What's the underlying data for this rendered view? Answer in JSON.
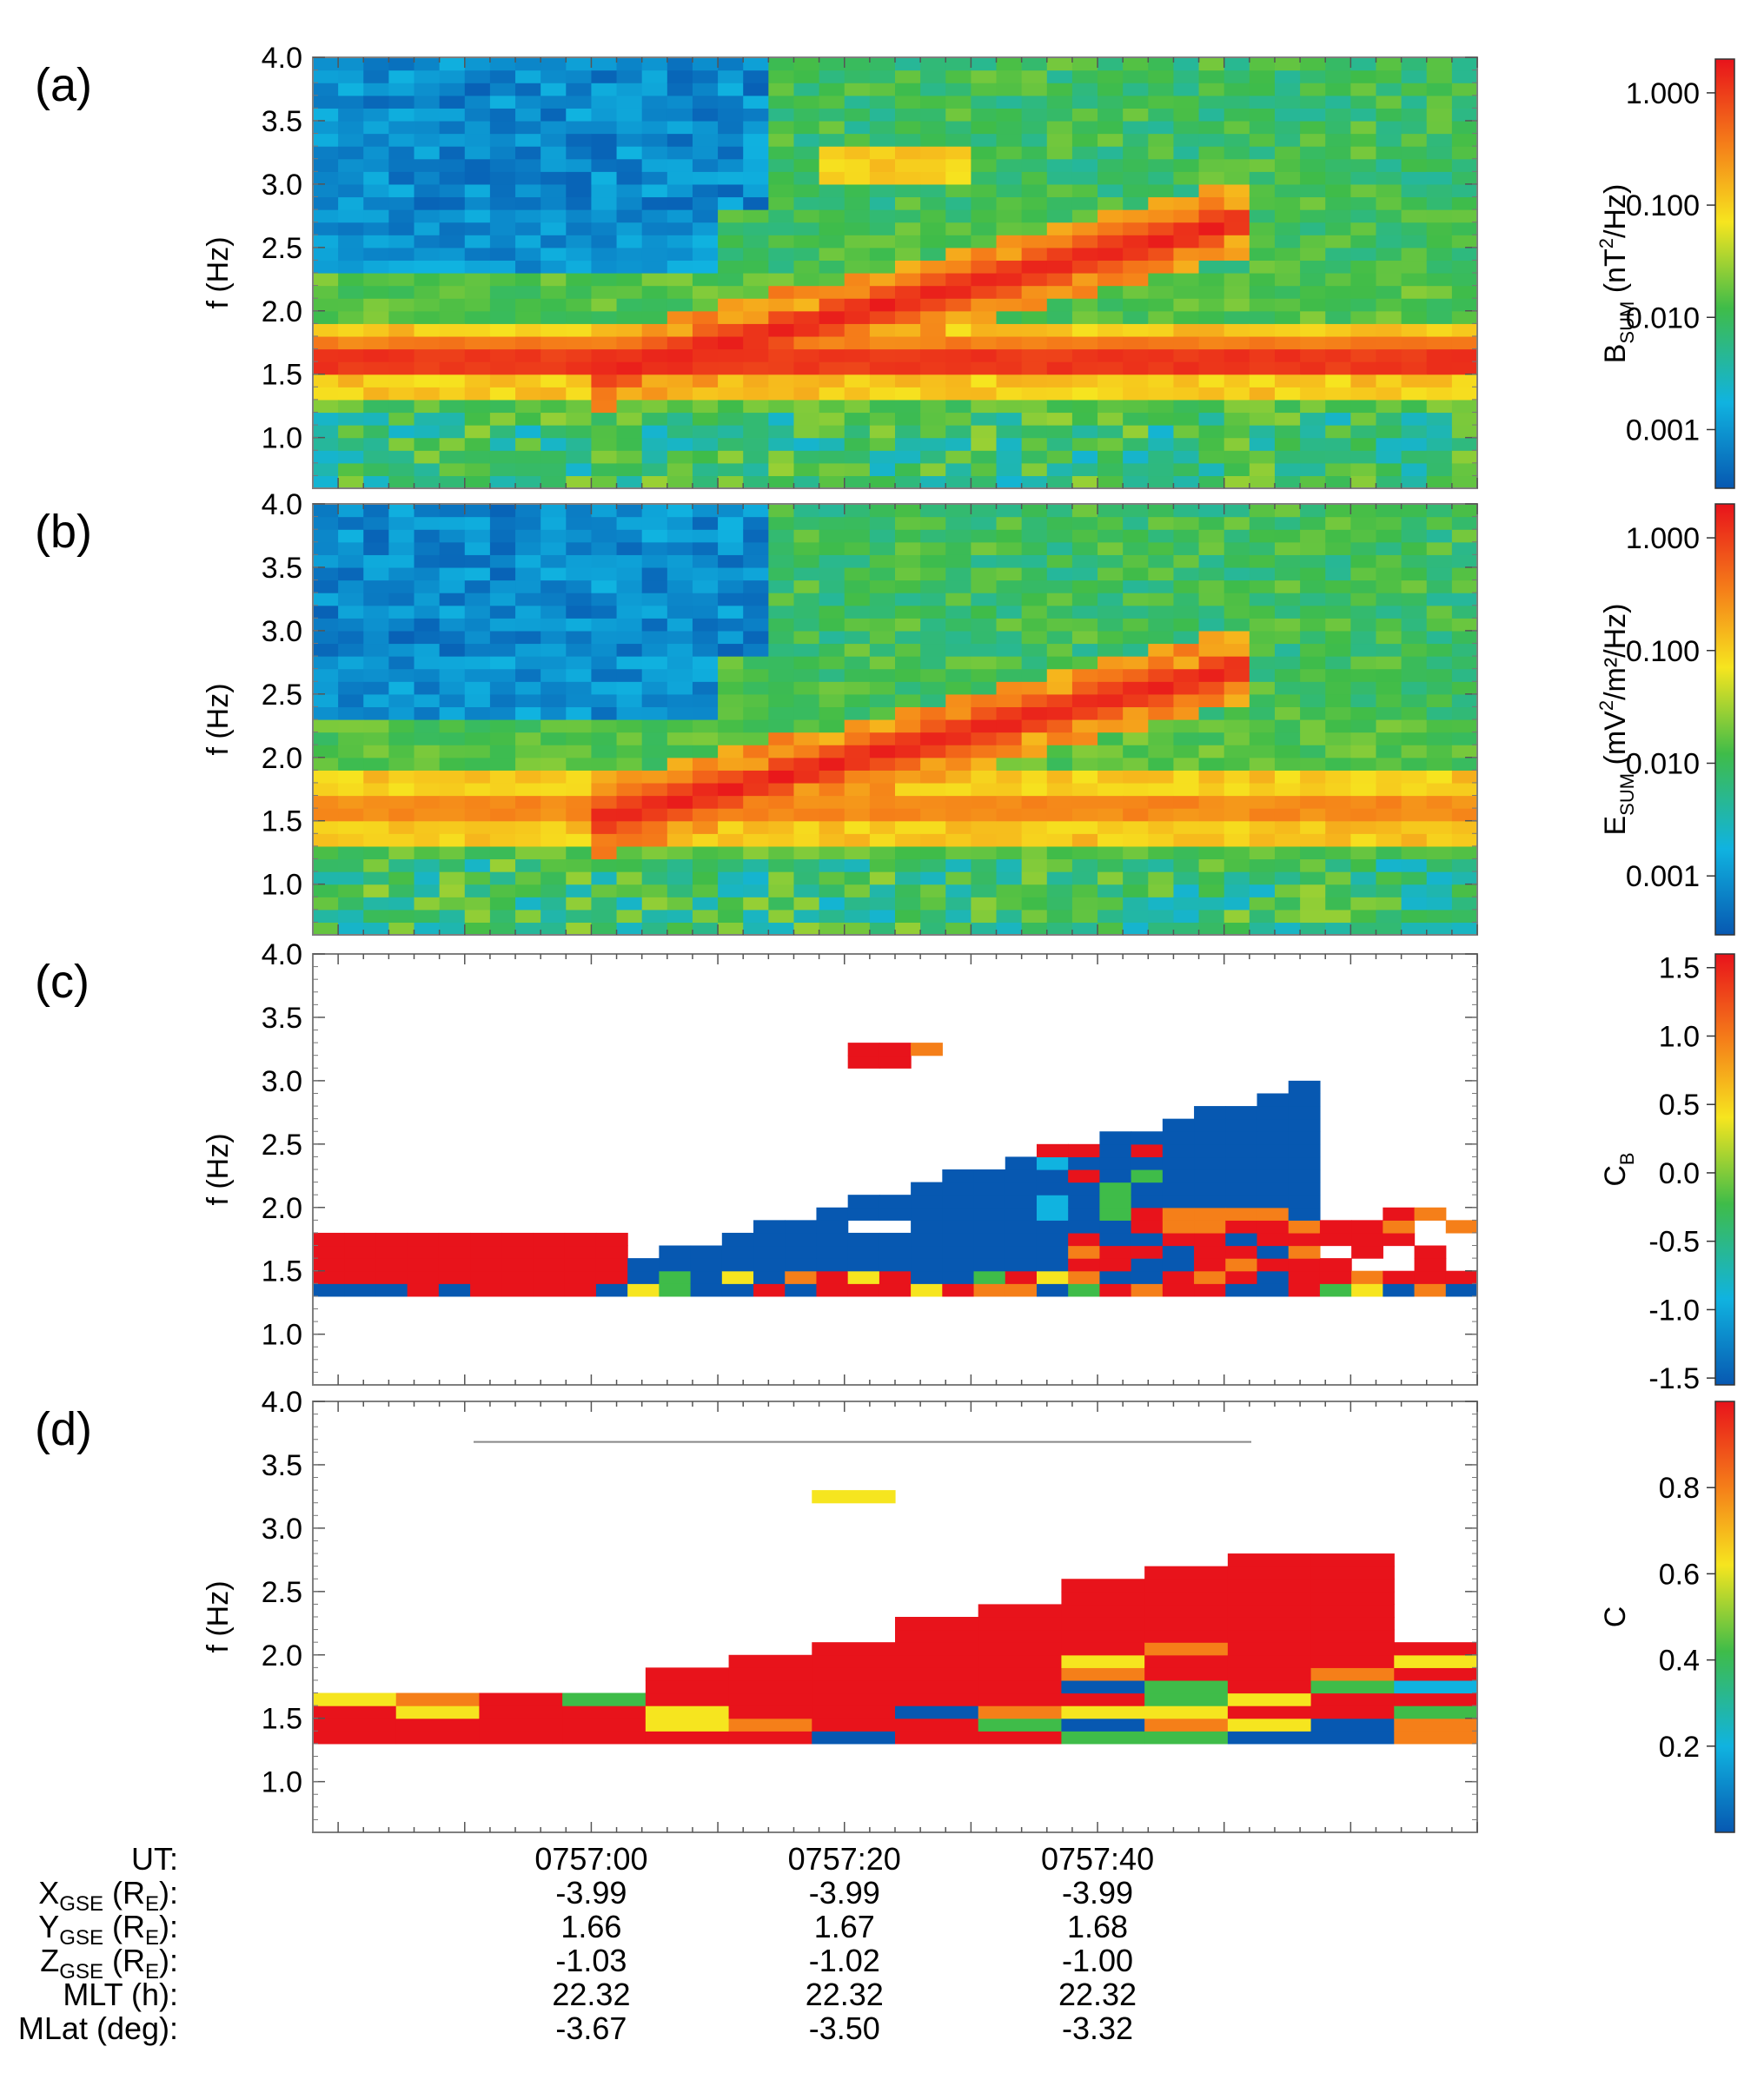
{
  "panels": [
    {
      "letter": "(a)",
      "kind": "spectrogram",
      "ylabel": "f (Hz)",
      "yticks": [
        "4.0",
        "3.5",
        "3.0",
        "2.5",
        "2.0",
        "1.5",
        "1.0"
      ]
    },
    {
      "letter": "(b)",
      "kind": "spectrogram",
      "ylabel": "f (Hz)",
      "yticks": [
        "4.0",
        "3.5",
        "3.0",
        "2.5",
        "2.0",
        "1.5",
        "1.0"
      ]
    },
    {
      "letter": "(c)",
      "kind": "sparse",
      "ylabel": "f (Hz)",
      "yticks": [
        "4.0",
        "3.5",
        "3.0",
        "2.5",
        "2.0",
        "1.5",
        "1.0"
      ]
    },
    {
      "letter": "(d)",
      "kind": "sparse",
      "ylabel": "f (Hz)",
      "yticks": [
        "4.0",
        "3.5",
        "3.0",
        "2.5",
        "2.0",
        "1.5",
        "1.0"
      ]
    }
  ],
  "colorbars": [
    {
      "label_main": "B",
      "label_sub": "SUM",
      "label_unit_a": " (nT",
      "label_sup": "2",
      "label_unit_b": "/Hz)",
      "scale": "log",
      "ticks": [
        "1.000",
        "0.100",
        "0.010",
        "0.001"
      ]
    },
    {
      "label_main": "E",
      "label_sub": "SUM",
      "label_unit_a": " (mV",
      "label_sup": "2",
      "label_unit_b": "/m²/Hz)",
      "scale": "log",
      "ticks": [
        "1.000",
        "0.100",
        "0.010",
        "0.001"
      ]
    },
    {
      "label_main": "C",
      "label_sub": "B",
      "label_unit_a": "",
      "label_sup": "",
      "label_unit_b": "",
      "scale": "linear",
      "ticks": [
        "1.5",
        "1.0",
        "0.5",
        "0.0",
        "-0.5",
        "-1.0",
        "-1.5"
      ]
    },
    {
      "label_main": "C",
      "label_sub": "",
      "label_unit_a": "",
      "label_sup": "",
      "label_unit_b": "",
      "scale": "linear",
      "ticks": [
        "0.8",
        "0.6",
        "0.4",
        "0.2"
      ]
    }
  ],
  "orbit_table": {
    "rows": [
      {
        "main": "UT:",
        "sub": "",
        "mid": "",
        "sub2": "",
        "tail": "",
        "values": [
          "0757:00",
          "0757:20",
          "0757:40"
        ]
      },
      {
        "main": "X",
        "sub": "GSE",
        "mid": " (R",
        "sub2": "E",
        "tail": "):",
        "values": [
          "-3.99",
          "-3.99",
          "-3.99"
        ]
      },
      {
        "main": "Y",
        "sub": "GSE",
        "mid": " (R",
        "sub2": "E",
        "tail": "):",
        "values": [
          "1.66",
          "1.67",
          "1.68"
        ]
      },
      {
        "main": "Z",
        "sub": "GSE",
        "mid": " (R",
        "sub2": "E",
        "tail": "):",
        "values": [
          "-1.03",
          "-1.02",
          "-1.00"
        ]
      },
      {
        "main": "MLT (h):",
        "sub": "",
        "mid": "",
        "sub2": "",
        "tail": "",
        "values": [
          "22.32",
          "22.32",
          "22.32"
        ]
      },
      {
        "main": "MLat (deg):",
        "sub": "",
        "mid": "",
        "sub2": "",
        "tail": "",
        "values": [
          "-3.67",
          "-3.50",
          "-3.32"
        ]
      }
    ]
  },
  "chart_data": [
    {
      "type": "heatmap",
      "panel": "(a)",
      "ylabel": "f (Hz)",
      "ylim": [
        0.6,
        4.0
      ],
      "colorbar": {
        "label": "BSUM (nT2/Hz)",
        "scale": "log",
        "range": [
          0.0003,
          2.0
        ]
      },
      "features": [
        {
          "name": "",
          "f_start": 1.6,
          "f_end": 1.6,
          "t_start": "0756:45",
          "t_end": "0758:10",
          "level": 1.0
        },
        {
          "name": "",
          "f_start": 1.5,
          "f_end": 2.75,
          "t_start": "0757:05",
          "t_end": "0757:50",
          "level": 1.0
        },
        {
          "name": "",
          "f_start": 3.15,
          "f_end": 3.15,
          "t_start": "0757:17",
          "t_end": "0757:25",
          "level": 0.1
        }
      ]
    },
    {
      "type": "heatmap",
      "panel": "(b)",
      "ylabel": "f (Hz)",
      "ylim": [
        0.6,
        4.0
      ],
      "colorbar": {
        "label": "ESUM (mV2/m2/Hz)",
        "scale": "log",
        "range": [
          0.0003,
          2.0
        ]
      },
      "features": [
        {
          "name": "",
          "f_start": 1.6,
          "f_end": 1.6,
          "t_start": "0756:45",
          "t_end": "0758:10",
          "level": 0.5
        },
        {
          "name": "",
          "f_start": 1.55,
          "f_end": 2.6,
          "t_start": "0757:05",
          "t_end": "0757:50",
          "level": 1.0
        }
      ]
    },
    {
      "type": "heatmap",
      "panel": "(c)",
      "ylabel": "f (Hz)",
      "ylim": [
        0.6,
        4.0
      ],
      "colorbar": {
        "label": "CB",
        "scale": "linear",
        "range": [
          -1.5,
          1.5
        ]
      },
      "features": [
        {
          "name": "",
          "region": "1.35-1.8 Hz, 0756:45-0757:00",
          "value": 1.5
        },
        {
          "name": "",
          "region": "wedge 1.45-2.9 Hz, 0757:05-0757:55",
          "value": -1.5
        },
        {
          "name": "",
          "region": "3.1-3.25 Hz, 0757:20-0757:25",
          "value": 1.5
        },
        {
          "name": "",
          "region": "1.45-2.1 Hz, 0757:45-0758:10",
          "value": 1.5
        }
      ]
    },
    {
      "type": "heatmap",
      "panel": "(d)",
      "ylabel": "f (Hz)",
      "ylim": [
        0.6,
        4.0
      ],
      "colorbar": {
        "label": "C",
        "scale": "linear",
        "range": [
          0.0,
          1.0
        ]
      },
      "features": [
        {
          "name": "",
          "region": "wedge 1.35-2.8 Hz, 0756:45-0757:55",
          "value": 1.0
        },
        {
          "name": "",
          "region": "3.15-3.25 Hz, 0757:20-0757:25",
          "value": 0.65
        },
        {
          "name": "",
          "region": "1.4-2.1 Hz, 0757:30-0758:10",
          "value": 0.6
        }
      ]
    }
  ],
  "colors": {
    "red": "#e8131b",
    "orange": "#f57f19",
    "yellow": "#f6e51f",
    "green": "#3fbc49",
    "cyan": "#10b3e0",
    "blue": "#0758b1"
  }
}
